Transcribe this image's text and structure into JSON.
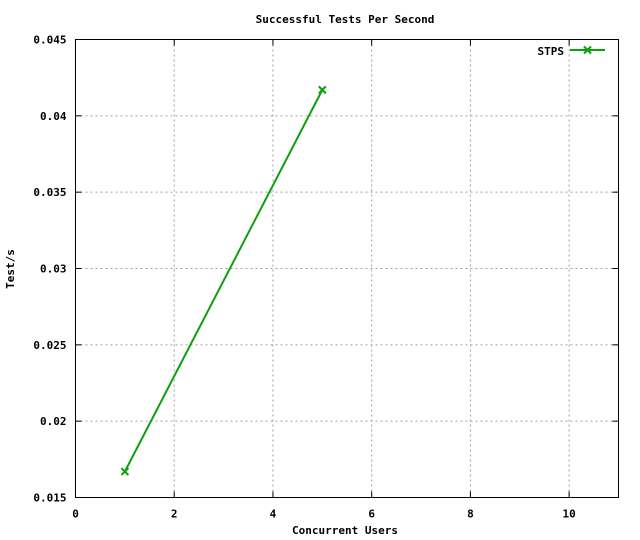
{
  "chart_data": {
    "type": "line",
    "title": "Successful Tests Per Second",
    "xlabel": "Concurrent Users",
    "ylabel": "Test/s",
    "xlim": [
      0,
      11
    ],
    "ylim": [
      0.015,
      0.045
    ],
    "x_ticks": [
      0,
      2,
      4,
      6,
      8,
      10
    ],
    "x_tick_labels": [
      "0",
      "2",
      "4",
      "6",
      "8",
      "10"
    ],
    "y_ticks": [
      0.015,
      0.02,
      0.025,
      0.03,
      0.035,
      0.04,
      0.045
    ],
    "y_tick_labels": [
      "0.015",
      "0.02",
      "0.025",
      "0.03",
      "0.035",
      "0.04",
      "0.045"
    ],
    "grid": true,
    "legend_position": "top-right",
    "series": [
      {
        "name": "STPS",
        "color": "#0ca00c",
        "marker": "x",
        "points": [
          {
            "x": 1,
            "y": 0.0167
          },
          {
            "x": 5,
            "y": 0.0417
          }
        ]
      }
    ]
  }
}
